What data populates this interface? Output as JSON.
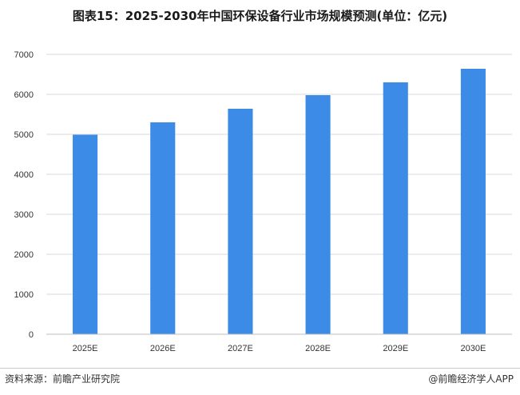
{
  "title": "图表15：2025-2030年中国环保设备行业市场规模预测(单位：亿元)",
  "source": "资料来源：前瞻产业研究院",
  "brand": "@前瞻经济学人APP",
  "colors": {
    "bar": "#3C8CE7",
    "grid": "#D9D9D9",
    "axis": "#BFBFBF",
    "text": "#333333"
  },
  "chart_data": {
    "type": "bar",
    "categories": [
      "2025E",
      "2026E",
      "2027E",
      "2028E",
      "2029E",
      "2030E"
    ],
    "values": [
      4990,
      5300,
      5640,
      5980,
      6300,
      6640
    ],
    "yticks": [
      0,
      1000,
      2000,
      3000,
      4000,
      5000,
      6000,
      7000
    ],
    "ylim": [
      0,
      7000
    ],
    "grid": true,
    "legend": "none"
  }
}
